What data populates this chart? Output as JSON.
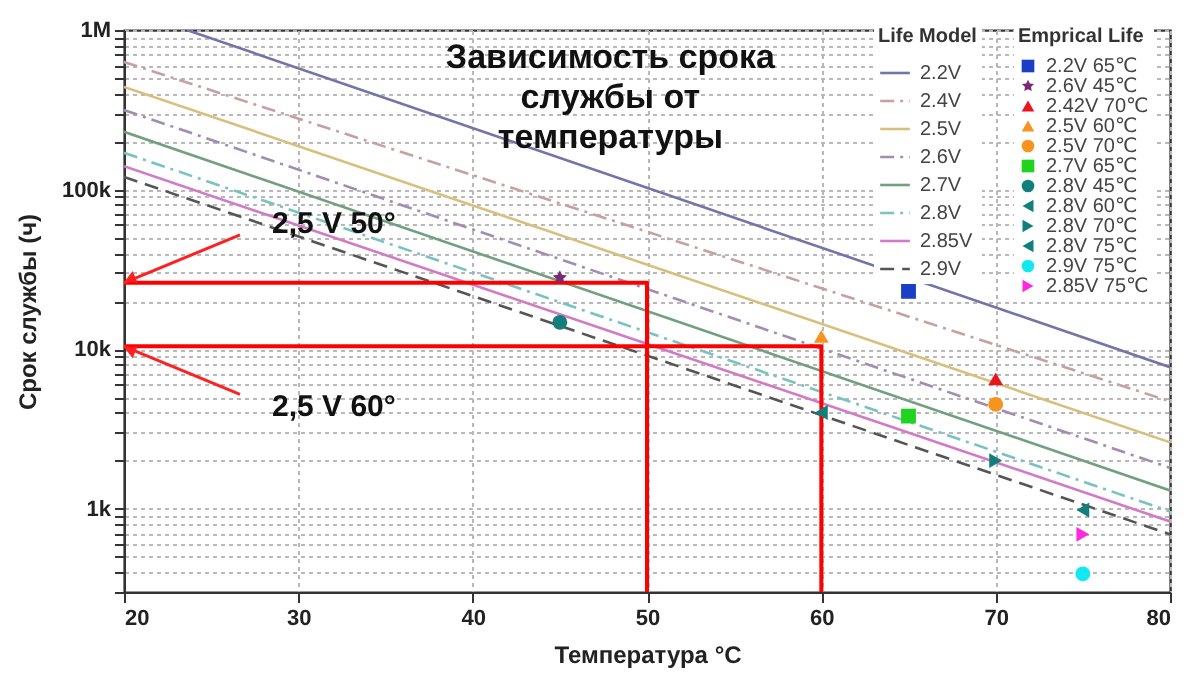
{
  "chart_data": {
    "type": "line",
    "title": "Зависимость срока службы от температуры",
    "xlabel": "Температура °C",
    "ylabel": "Срок службы (ч)",
    "legend_title": "Life Model",
    "annotations": [
      "Emprical Life",
      {
        "text": "2,5 V 50°",
        "x": 20,
        "y": 26000
      },
      {
        "text": "2,5 V 60°",
        "x": 20,
        "y": 10400
      }
    ],
    "log": "y",
    "grid": true,
    "legend": "top right",
    "xlim": [
      20,
      80
    ],
    "xticks": [
      20,
      30,
      40,
      50,
      60,
      70,
      80
    ],
    "ylim": [
      300,
      1000000
    ],
    "yticks": [
      {
        "value": 300,
        "label": null
      },
      {
        "value": 400,
        "label": null
      },
      {
        "value": 500,
        "label": null
      },
      {
        "value": 600,
        "label": null
      },
      {
        "value": 700,
        "label": null
      },
      {
        "value": 800,
        "label": null
      },
      {
        "value": 900,
        "label": null
      },
      {
        "value": 1000,
        "label": "1k"
      },
      {
        "value": 2000,
        "label": null
      },
      {
        "value": 3000,
        "label": null
      },
      {
        "value": 4000,
        "label": null
      },
      {
        "value": 5000,
        "label": null
      },
      {
        "value": 6000,
        "label": null
      },
      {
        "value": 7000,
        "label": null
      },
      {
        "value": 8000,
        "label": null
      },
      {
        "value": 9000,
        "label": null
      },
      {
        "value": 10000,
        "label": "10k"
      },
      {
        "value": 20000,
        "label": null
      },
      {
        "value": 30000,
        "label": null
      },
      {
        "value": 40000,
        "label": null
      },
      {
        "value": 50000,
        "label": null
      },
      {
        "value": 60000,
        "label": null
      },
      {
        "value": 70000,
        "label": null
      },
      {
        "value": 80000,
        "label": null
      },
      {
        "value": 90000,
        "label": null
      },
      {
        "value": 100000,
        "label": "100k"
      },
      {
        "value": 200000,
        "label": null
      },
      {
        "value": 300000,
        "label": null
      },
      {
        "value": 400000,
        "label": null
      },
      {
        "value": 500000,
        "label": null
      },
      {
        "value": 600000,
        "label": null
      },
      {
        "value": 700000,
        "label": null
      },
      {
        "value": 800000,
        "label": null
      },
      {
        "value": 900000,
        "label": null
      },
      {
        "value": 1000000,
        "label": "1M"
      }
    ],
    "series": [
      {
        "name": "2.2V",
        "color": "#7474a8",
        "line_style": "solid",
        "x": [
          23.6,
          80
        ],
        "values": [
          1000000,
          7700
        ]
      },
      {
        "name": "2.4V",
        "color": "#c8a0a0",
        "line_style": "dotted",
        "x": [
          20,
          80
        ],
        "values": [
          630000,
          4700
        ]
      },
      {
        "name": "2.5V",
        "color": "#d8c07c",
        "line_style": "solid",
        "x": [
          20,
          80
        ],
        "values": [
          440000,
          2600
        ]
      },
      {
        "name": "2.6V",
        "color": "#a38cb3",
        "line_style": "dotted",
        "x": [
          20,
          80
        ],
        "values": [
          315000,
          1800
        ]
      },
      {
        "name": "2.7V",
        "color": "#72a07f",
        "line_style": "solid",
        "x": [
          20,
          80
        ],
        "values": [
          230000,
          1300
        ]
      },
      {
        "name": "2.8V",
        "color": "#78c2c2",
        "line_style": "dotted",
        "x": [
          20,
          80
        ],
        "values": [
          170000,
          960
        ]
      },
      {
        "name": "2.85V",
        "color": "#d37ac6",
        "line_style": "solid",
        "x": [
          20,
          80
        ],
        "values": [
          140000,
          830
        ]
      },
      {
        "name": "2.9V",
        "color": "#555555",
        "line_style": "dashed",
        "x": [
          20,
          80
        ],
        "values": [
          120000,
          690
        ]
      },
      {
        "type": "line",
        "color": "#ff0000",
        "line_style": "solid",
        "x": [
          20,
          50,
          50
        ],
        "values": [
          26000,
          26000,
          300
        ]
      },
      {
        "type": "line",
        "color": "#ff0000",
        "line_style": "solid",
        "x": [
          20,
          60,
          60
        ],
        "values": [
          10400,
          10400,
          300
        ]
      },
      {
        "name": "2.2V 65℃",
        "type": "scatter",
        "marker": "square",
        "color": "#1a3fc4",
        "x": [
          65
        ],
        "values": [
          23000
        ]
      },
      {
        "name": "2.6V 45℃",
        "type": "scatter",
        "marker": "star",
        "color": "#7b2a72",
        "x": [
          45
        ],
        "values": [
          28000
        ]
      },
      {
        "name": "2.42V 70℃",
        "type": "scatter",
        "marker": "triangle",
        "color": "#e8161c",
        "x": [
          70
        ],
        "values": [
          6500
        ]
      },
      {
        "name": "2.5V 60℃",
        "type": "scatter",
        "marker": "triangle",
        "color": "#f7941d",
        "x": [
          60
        ],
        "values": [
          12000
        ]
      },
      {
        "name": "2.5V 70℃",
        "type": "scatter",
        "marker": "circle",
        "color": "#f7941d",
        "x": [
          70
        ],
        "values": [
          4500
        ]
      },
      {
        "name": "2.7V 65℃",
        "type": "scatter",
        "marker": "square",
        "color": "#1fd31f",
        "x": [
          65
        ],
        "values": [
          3800
        ]
      },
      {
        "name": "2.8V 45℃",
        "type": "scatter",
        "marker": "circle",
        "color": "#137f7a",
        "x": [
          45
        ],
        "values": [
          14700
        ]
      },
      {
        "name": "2.8V 60℃",
        "type": "scatter",
        "marker": "triangle-left",
        "color": "#137f7a",
        "x": [
          60
        ],
        "values": [
          4000
        ]
      },
      {
        "name": "2.8V 70℃",
        "type": "scatter",
        "marker": "triangle-right",
        "color": "#137f7a",
        "x": [
          70
        ],
        "values": [
          2000
        ]
      },
      {
        "name": "2.8V 75℃",
        "type": "scatter",
        "marker": "triangle-left",
        "color": "#137f7a",
        "x": [
          75
        ],
        "values": [
          980
        ]
      },
      {
        "name": "2.9V 75℃",
        "type": "scatter",
        "marker": "circle",
        "color": "#11e8f0",
        "x": [
          75
        ],
        "values": [
          390
        ]
      },
      {
        "name": "2.85V 75℃",
        "type": "scatter",
        "marker": "triangle-right",
        "color": "#ff28e0",
        "x": [
          75
        ],
        "values": [
          690
        ]
      }
    ]
  }
}
